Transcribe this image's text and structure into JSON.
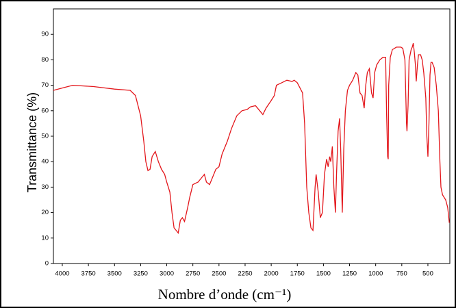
{
  "chart_data": {
    "type": "line",
    "y_label": "Transmittance (%)",
    "x_label": "Nombre d’onde (cm⁻¹)",
    "xlim": [
      4085,
      290
    ],
    "ylim": [
      0,
      100
    ],
    "xticks": [
      4000,
      3750,
      3500,
      3250,
      3000,
      2750,
      2500,
      2250,
      2000,
      1750,
      1500,
      1250,
      1000,
      750,
      500
    ],
    "yticks": [
      0,
      10,
      20,
      30,
      40,
      50,
      60,
      70,
      80,
      90
    ],
    "series": [
      {
        "color": "#e3161b",
        "x": [
          4085,
          3900,
          3700,
          3500,
          3350,
          3300,
          3250,
          3220,
          3200,
          3180,
          3160,
          3140,
          3110,
          3080,
          3050,
          3020,
          3000,
          2970,
          2950,
          2930,
          2910,
          2890,
          2870,
          2850,
          2830,
          2800,
          2780,
          2750,
          2700,
          2660,
          2640,
          2620,
          2590,
          2560,
          2530,
          2500,
          2470,
          2420,
          2380,
          2330,
          2280,
          2230,
          2200,
          2150,
          2120,
          2080,
          2050,
          2000,
          1970,
          1950,
          1900,
          1850,
          1800,
          1780,
          1750,
          1700,
          1680,
          1660,
          1640,
          1620,
          1600,
          1580,
          1570,
          1550,
          1530,
          1510,
          1490,
          1470,
          1455,
          1440,
          1430,
          1415,
          1400,
          1385,
          1375,
          1360,
          1345,
          1335,
          1320,
          1305,
          1290,
          1270,
          1250,
          1220,
          1190,
          1170,
          1150,
          1130,
          1110,
          1095,
          1080,
          1060,
          1040,
          1025,
          1010,
          990,
          960,
          930,
          905,
          895,
          885,
          880,
          875,
          860,
          840,
          800,
          760,
          740,
          720,
          705,
          700,
          690,
          680,
          660,
          650,
          640,
          630,
          620,
          612,
          600,
          590,
          570,
          555,
          540,
          520,
          510,
          500,
          490,
          480,
          470,
          460,
          440,
          420,
          400,
          385,
          375,
          360,
          330,
          310,
          295
        ],
        "values": [
          68,
          70,
          69.5,
          68.5,
          68,
          66,
          58,
          48,
          40,
          36.5,
          37,
          42,
          44,
          40,
          37,
          35,
          32,
          28,
          20,
          14,
          13,
          12,
          17,
          18,
          16.5,
          22,
          26,
          31,
          32,
          34,
          35,
          32,
          31,
          34,
          37,
          38,
          43,
          48,
          53,
          58,
          60,
          60.5,
          61.5,
          62,
          60.5,
          58.5,
          61,
          64,
          66,
          70,
          71,
          72,
          71.5,
          72,
          71,
          67,
          55,
          30,
          20,
          14,
          13,
          30,
          35,
          28,
          18,
          20,
          35,
          41,
          38,
          42,
          40,
          46,
          30,
          20,
          35,
          52,
          57,
          45,
          20,
          45,
          60,
          68,
          70,
          72,
          75,
          74,
          67,
          66,
          61,
          70,
          75,
          76.5,
          67,
          65,
          75,
          78,
          80,
          81,
          81,
          58,
          42,
          41,
          70,
          81,
          84,
          85,
          85,
          84.5,
          80,
          55,
          52,
          62,
          80,
          84,
          85,
          86.5,
          83,
          78,
          71.5,
          78,
          82,
          82,
          80,
          75,
          65,
          50,
          42,
          55,
          74,
          79,
          79,
          77,
          70,
          60,
          40,
          30,
          27,
          25,
          22,
          16
        ]
      }
    ]
  }
}
